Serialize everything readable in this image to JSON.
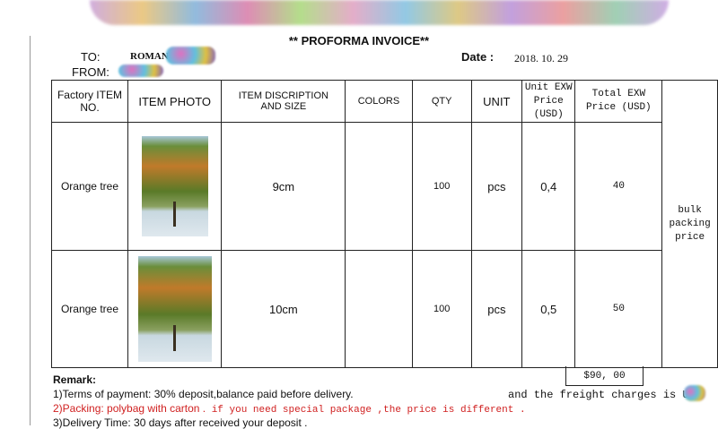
{
  "title": "** PROFORMA INVOICE**",
  "to_label": "TO:",
  "to_value": "ROMAN",
  "from_label": "FROM:",
  "date_label": "Date :",
  "date_value": "2018. 10. 29",
  "headers": [
    "Factory ITEM NO.",
    "ITEM PHOTO",
    "ITEM DISCRIPTION AND SIZE",
    "COLORS",
    "QTY",
    "UNIT",
    "Unit EXW Price (USD)",
    "Total EXW Price (USD)"
  ],
  "rows": [
    {
      "item": "Orange tree",
      "desc": "9cm",
      "colors": "",
      "qty": "100",
      "unit": "pcs",
      "unit_price": "0,4",
      "total": "40"
    },
    {
      "item": "Orange tree",
      "desc": "10cm",
      "colors": "",
      "qty": "100",
      "unit": "pcs",
      "unit_price": "0,5",
      "total": "50"
    }
  ],
  "side_note": "bulk packing price",
  "grand_total": "$90, 00",
  "freight": "and the freight charges is USD",
  "remark_label": "Remark:",
  "remarks": {
    "r1": "1)Terms of payment: 30% deposit,balance paid before delivery.",
    "r2a": "2)Packing:  polybag with carton .",
    "r2b": " if you need special package ,the price is different .",
    "r3": "3)Delivery Time: 30 days after received your deposit ."
  },
  "colors": {
    "red_text": "#d02020"
  }
}
